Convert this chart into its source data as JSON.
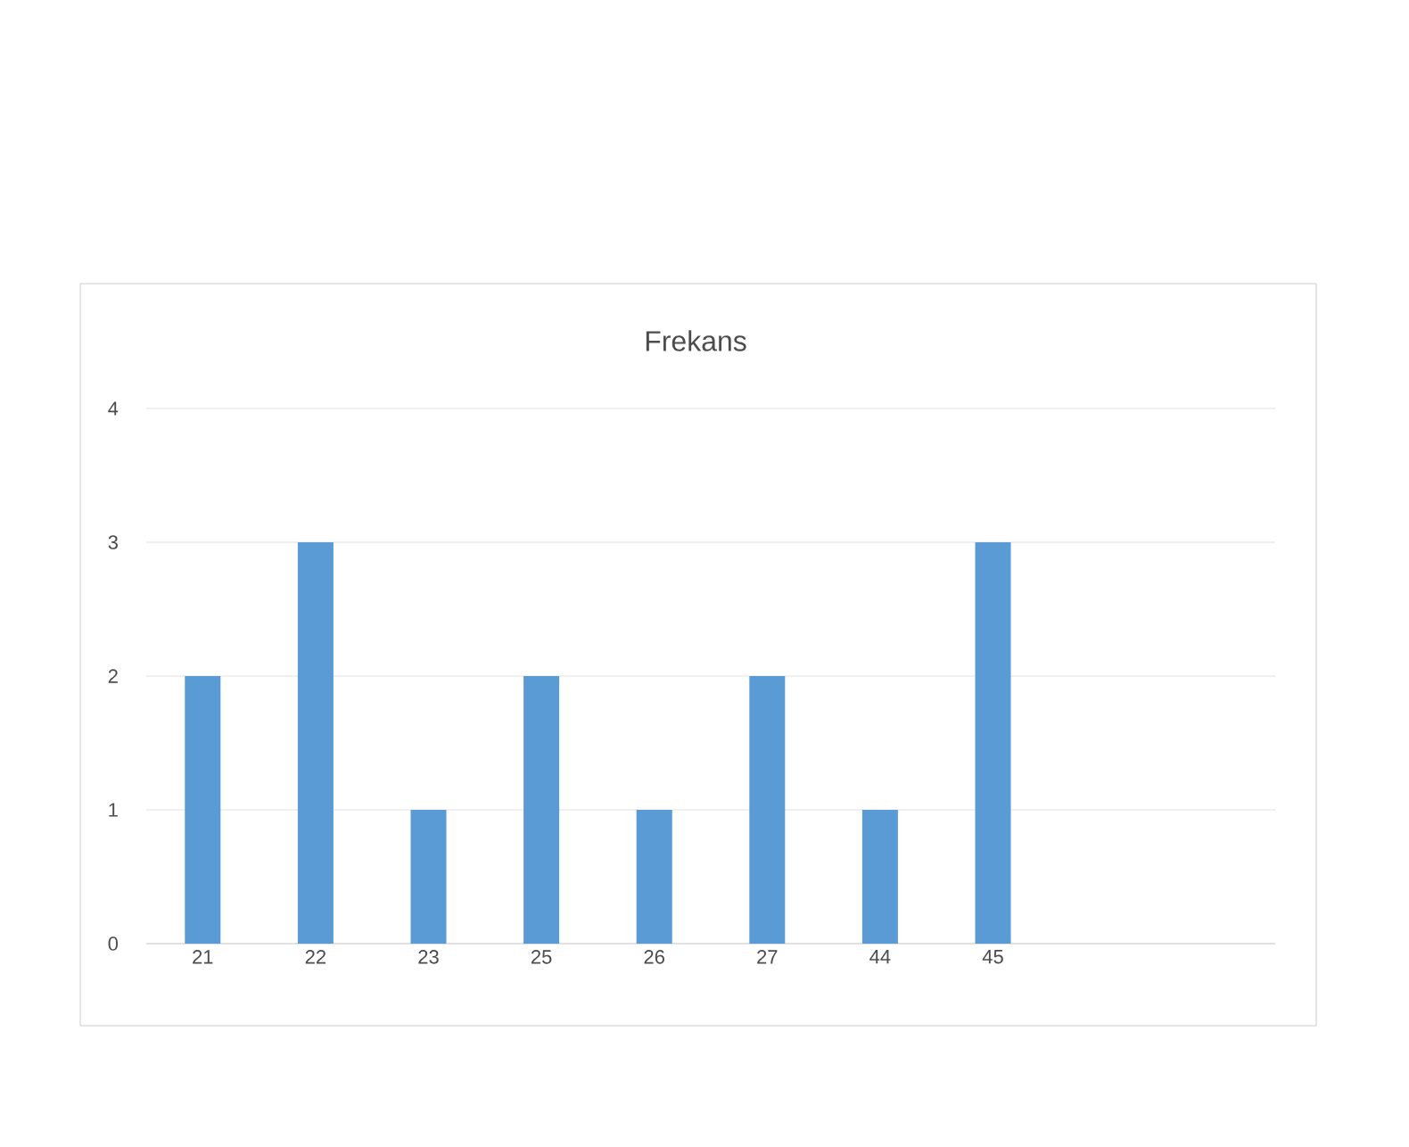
{
  "chart_data": {
    "type": "bar",
    "title": "Frekans",
    "categories": [
      "21",
      "22",
      "23",
      "25",
      "26",
      "27",
      "44",
      "45",
      null,
      null
    ],
    "values": [
      2,
      3,
      1,
      2,
      1,
      2,
      1,
      3,
      null,
      null
    ],
    "color": "#5b9bd5",
    "ylim": [
      0,
      4
    ],
    "yticks": [
      0,
      1,
      2,
      3,
      4
    ],
    "grid": "y"
  }
}
